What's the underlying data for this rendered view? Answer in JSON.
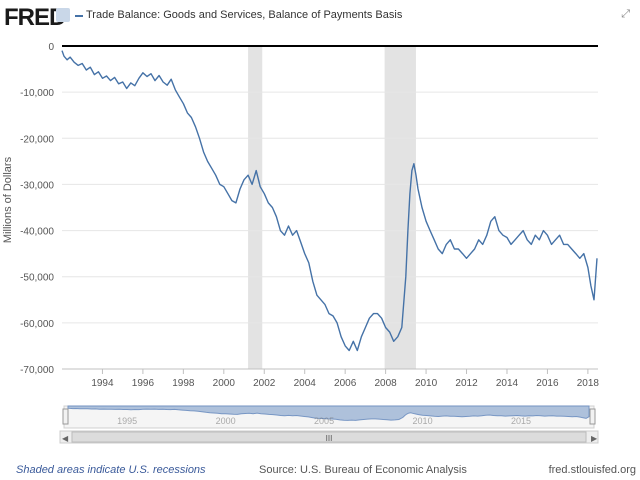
{
  "header": {
    "logo": "FRED",
    "title": "Trade Balance: Goods and Services, Balance of Payments Basis",
    "fullscreen_icon": "expand-icon"
  },
  "footer": {
    "recessions_note": "Shaded areas indicate U.S. recessions",
    "source": "Source: U.S. Bureau of Economic Analysis",
    "site": "fred.stlouisfed.org"
  },
  "navigator": {
    "year_labels": [
      "1995",
      "2000",
      "2005",
      "2010",
      "2015"
    ],
    "handle_symbol": "III"
  },
  "colors": {
    "series": "#4572a7",
    "recession": "#e3e3e3",
    "navigator_fill": "#a7bcd9"
  },
  "chart_data": {
    "type": "line",
    "title": "Trade Balance: Goods and Services, Balance of Payments Basis",
    "xlabel": "",
    "ylabel": "Millions of Dollars",
    "xlim": [
      1992.0,
      2018.5
    ],
    "ylim": [
      -70000,
      0
    ],
    "x_ticks": [
      1994,
      1996,
      1998,
      2000,
      2002,
      2004,
      2006,
      2008,
      2010,
      2012,
      2014,
      2016,
      2018
    ],
    "y_ticks": [
      0,
      -10000,
      -20000,
      -30000,
      -40000,
      -50000,
      -60000,
      -70000
    ],
    "y_tick_labels": [
      "0",
      "-10,000",
      "-20,000",
      "-30,000",
      "-40,000",
      "-50,000",
      "-60,000",
      "-70,000"
    ],
    "recessions": [
      [
        2001.2,
        2001.9
      ],
      [
        2007.95,
        2009.5
      ]
    ],
    "grid": true,
    "legend": "top-left",
    "series": [
      {
        "name": "Trade Balance: Goods and Services, Balance of Payments Basis",
        "x": [
          1992.0,
          1992.1,
          1992.25,
          1992.4,
          1992.6,
          1992.8,
          1993.0,
          1993.2,
          1993.4,
          1993.6,
          1993.8,
          1994.0,
          1994.2,
          1994.4,
          1994.6,
          1994.8,
          1995.0,
          1995.2,
          1995.4,
          1995.6,
          1995.8,
          1996.0,
          1996.2,
          1996.4,
          1996.6,
          1996.8,
          1997.0,
          1997.2,
          1997.4,
          1997.6,
          1997.8,
          1998.0,
          1998.2,
          1998.4,
          1998.6,
          1998.8,
          1999.0,
          1999.2,
          1999.4,
          1999.6,
          1999.8,
          2000.0,
          2000.2,
          2000.4,
          2000.6,
          2000.8,
          2001.0,
          2001.2,
          2001.4,
          2001.6,
          2001.8,
          2002.0,
          2002.2,
          2002.4,
          2002.6,
          2002.8,
          2003.0,
          2003.2,
          2003.4,
          2003.6,
          2003.8,
          2004.0,
          2004.2,
          2004.4,
          2004.6,
          2004.8,
          2005.0,
          2005.2,
          2005.4,
          2005.6,
          2005.8,
          2006.0,
          2006.2,
          2006.4,
          2006.6,
          2006.8,
          2007.0,
          2007.2,
          2007.4,
          2007.6,
          2007.8,
          2008.0,
          2008.2,
          2008.4,
          2008.6,
          2008.8,
          2009.0,
          2009.1,
          2009.2,
          2009.3,
          2009.4,
          2009.5,
          2009.6,
          2009.8,
          2010.0,
          2010.2,
          2010.4,
          2010.6,
          2010.8,
          2011.0,
          2011.2,
          2011.4,
          2011.6,
          2011.8,
          2012.0,
          2012.2,
          2012.4,
          2012.6,
          2012.8,
          2013.0,
          2013.2,
          2013.4,
          2013.6,
          2013.8,
          2014.0,
          2014.2,
          2014.4,
          2014.6,
          2014.8,
          2015.0,
          2015.2,
          2015.4,
          2015.6,
          2015.8,
          2016.0,
          2016.2,
          2016.4,
          2016.6,
          2016.8,
          2017.0,
          2017.2,
          2017.4,
          2017.6,
          2017.8,
          2018.0,
          2018.15,
          2018.3,
          2018.45
        ],
        "y": [
          -1000,
          -2200,
          -3000,
          -2400,
          -3500,
          -4200,
          -3800,
          -5200,
          -4600,
          -6200,
          -5600,
          -7000,
          -6500,
          -7500,
          -6800,
          -8200,
          -7800,
          -9200,
          -8000,
          -8600,
          -7000,
          -5800,
          -6600,
          -6000,
          -7500,
          -6400,
          -7800,
          -8500,
          -7200,
          -9500,
          -11000,
          -12500,
          -14500,
          -15500,
          -17500,
          -20000,
          -23000,
          -25000,
          -26500,
          -28000,
          -30000,
          -30500,
          -32000,
          -33500,
          -34000,
          -31000,
          -29000,
          -28000,
          -30000,
          -27000,
          -30500,
          -32000,
          -34000,
          -35000,
          -37000,
          -40000,
          -41000,
          -39000,
          -41000,
          -40000,
          -42500,
          -45000,
          -47000,
          -51000,
          -54000,
          -55000,
          -56000,
          -58000,
          -58500,
          -60000,
          -63000,
          -65000,
          -66000,
          -64000,
          -66000,
          -63000,
          -61000,
          -59000,
          -58000,
          -58000,
          -59000,
          -61000,
          -62000,
          -64000,
          -63000,
          -61000,
          -50000,
          -40000,
          -32000,
          -27000,
          -25500,
          -28000,
          -31000,
          -35000,
          -38000,
          -40000,
          -42000,
          -44000,
          -45000,
          -43000,
          -42000,
          -44000,
          -44000,
          -45000,
          -46000,
          -45000,
          -44000,
          -42000,
          -43000,
          -41000,
          -38000,
          -37000,
          -40000,
          -41000,
          -41500,
          -43000,
          -42000,
          -41000,
          -40000,
          -42000,
          -43000,
          -41000,
          -42000,
          -40000,
          -41000,
          -43000,
          -42000,
          -41000,
          -43000,
          -43000,
          -44000,
          -45000,
          -46000,
          -45000,
          -48000,
          -52000,
          -55000,
          -46000
        ]
      }
    ]
  }
}
